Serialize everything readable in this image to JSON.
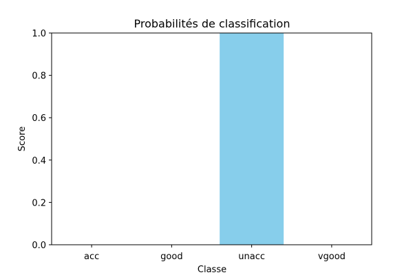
{
  "chart_data": {
    "type": "bar",
    "title": "Probabilités de classification",
    "xlabel": "Classe",
    "ylabel": "Score",
    "categories": [
      "acc",
      "good",
      "unacc",
      "vgood"
    ],
    "values": [
      0.0,
      0.0,
      1.0,
      0.0
    ],
    "ylim": [
      0.0,
      1.0
    ],
    "yticks": [
      "0.0",
      "0.2",
      "0.4",
      "0.6",
      "0.8",
      "1.0"
    ],
    "grid": false,
    "bar_color": "#87ceeb"
  }
}
